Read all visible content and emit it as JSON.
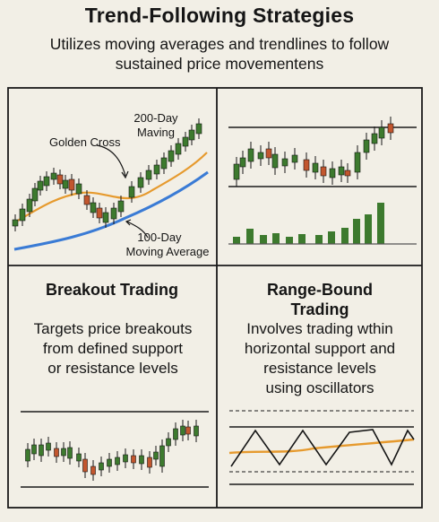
{
  "title": "Trend-Following Strategies",
  "subtitle": "Utilizes moving averages and trendlines to follow sustained price movementens",
  "panels": {
    "moving_averages": {
      "labels": {
        "ma200": "200-Day Maving",
        "golden_cross": "Golden Cross",
        "ma100_line1": "100-Day",
        "ma100_line2": "Moving Average"
      }
    },
    "breakout": {
      "heading": "Breakout Trading",
      "text_line1": "Targets price breakouts",
      "text_line2": "from defined support",
      "text_line3": "or resistance levels"
    },
    "range_bound": {
      "heading_line1": "Range-Bound",
      "heading_line2": "Trading",
      "text_line1": "Involves trading wthin",
      "text_line2": "horizontal support and",
      "text_line3": "resistance levels",
      "text_line4": "using oscillators"
    }
  },
  "colors": {
    "background": "#f2efe6",
    "bull_candle": "#3d7a2e",
    "bear_candle": "#c2562e",
    "ma_orange": "#e69a2e",
    "ma_blue": "#3a7bd5",
    "ink": "#151515"
  }
}
